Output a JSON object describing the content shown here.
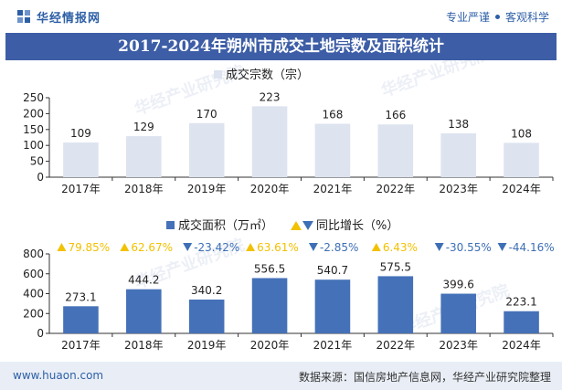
{
  "header": {
    "logo_text": "华经情报网",
    "tags": [
      "专业严谨",
      "客观科学"
    ]
  },
  "title": "2017-2024年朔州市成交土地宗数及面积统计",
  "footer": {
    "website": "www.huaon.com",
    "source": "数据来源：国信房地产信息网，华经产业研究院整理"
  },
  "watermark": "华经产业研究院",
  "colors": {
    "bar": "#4571b8",
    "bar_light": "#dde3ef",
    "up": "#f2c100",
    "down": "#3d6fb6",
    "title_bg": "#3d5ea6"
  },
  "chart_data": [
    {
      "type": "bar",
      "legend": [
        "成交宗数（宗）"
      ],
      "categories": [
        "2017年",
        "2018年",
        "2019年",
        "2020年",
        "2021年",
        "2022年",
        "2023年",
        "2024年"
      ],
      "series": [
        {
          "name": "成交宗数（宗）",
          "values": [
            109,
            129,
            170,
            223,
            168,
            166,
            138,
            108
          ]
        }
      ],
      "ylim": [
        0,
        250
      ],
      "yticks": [
        0,
        50,
        100,
        150,
        200,
        250
      ]
    },
    {
      "type": "bar",
      "legend": [
        "成交面积（万㎡）",
        "同比增长（%）"
      ],
      "categories": [
        "2017年",
        "2018年",
        "2019年",
        "2020年",
        "2021年",
        "2022年",
        "2023年",
        "2024年"
      ],
      "series": [
        {
          "name": "成交面积（万㎡）",
          "values": [
            273.1,
            444.2,
            340.2,
            556.5,
            540.7,
            575.5,
            399.6,
            223.1
          ]
        },
        {
          "name": "同比增长（%）",
          "values": [
            79.85,
            62.67,
            -23.42,
            63.61,
            -2.85,
            6.43,
            -30.55,
            -44.16
          ]
        }
      ],
      "growth_labels": [
        "79.85%",
        "62.67%",
        "-23.42%",
        "63.61%",
        "-2.85%",
        "6.43%",
        "-30.55%",
        "-44.16%"
      ],
      "ylim": [
        0,
        800
      ],
      "yticks": [
        0,
        200,
        400,
        600,
        800
      ]
    }
  ]
}
